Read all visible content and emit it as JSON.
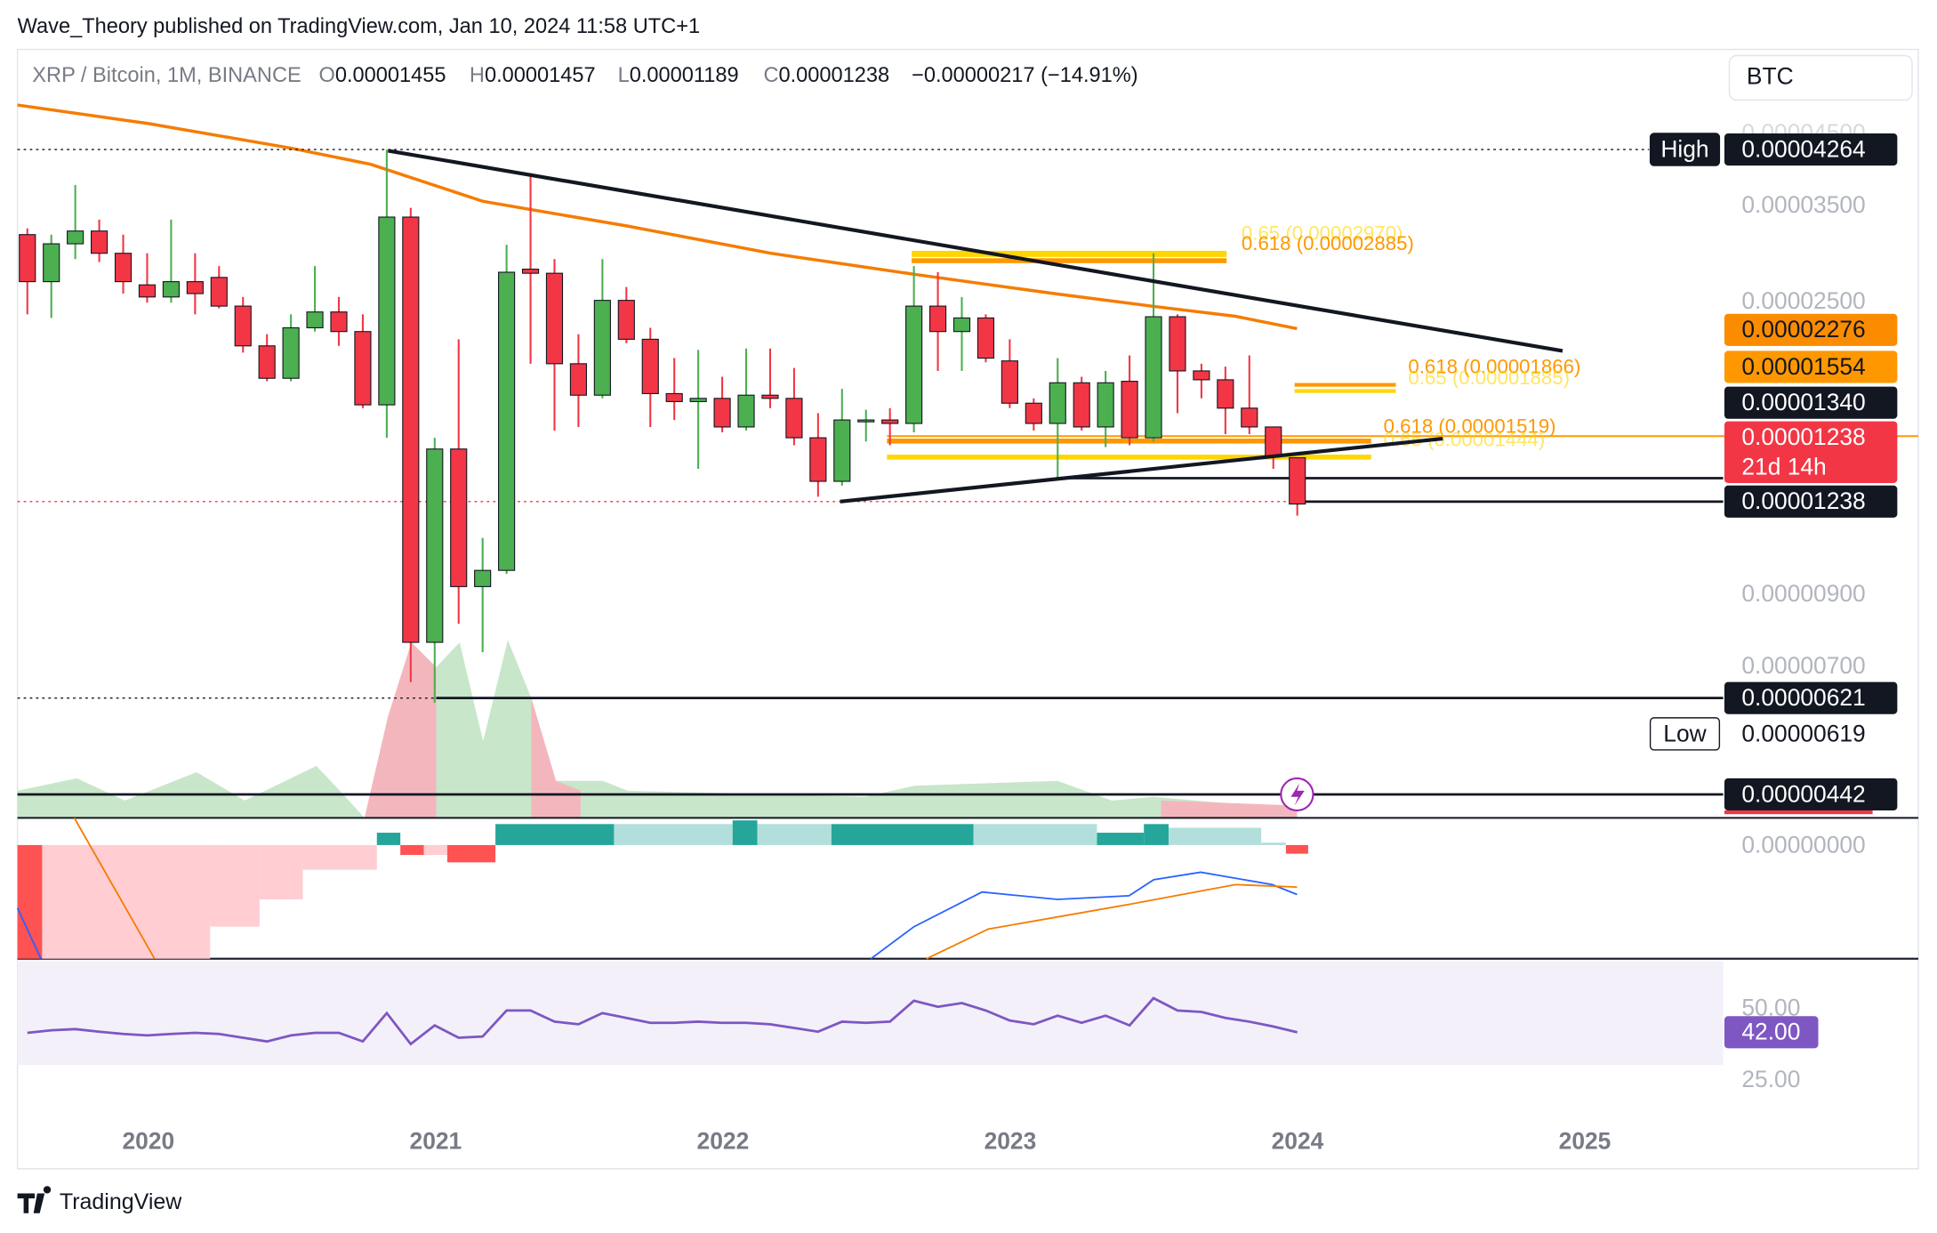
{
  "header": {
    "title": "Wave_Theory published on TradingView.com, Jan 10, 2024 11:58 UTC+1"
  },
  "legend": {
    "symbol": "XRP / Bitcoin, 1M, BINANCE",
    "o_label": "O",
    "o": "0.00001455",
    "h_label": "H",
    "h": "0.00001457",
    "l_label": "L",
    "l": "0.00001189",
    "c_label": "C",
    "c": "0.00001238",
    "change": "−0.00000217 (−14.91%)"
  },
  "currency_button": "BTC",
  "chart_data": {
    "type": "candlestick",
    "log_scale": true,
    "ylim": [
      4.14e-06,
      6.05e-05
    ],
    "yticks": [
      {
        "value": 4.5e-05,
        "label": "0.00004500"
      },
      {
        "value": 3.5e-05,
        "label": "0.00003500"
      },
      {
        "value": 2.5e-05,
        "label": "0.00002500"
      },
      {
        "value": 9e-06,
        "label": "0.00000900"
      },
      {
        "value": 7e-06,
        "label": "0.00000700"
      }
    ],
    "up_color": "#4caf50",
    "down_color": "#f23645",
    "x_labels": [
      "2020",
      "2021",
      "2022",
      "2023",
      "2024",
      "2025"
    ],
    "candles": [
      [
        3.17e-05,
        3.24e-05,
        2.4e-05,
        2.69e-05
      ],
      [
        2.69e-05,
        3.17e-05,
        2.37e-05,
        3.07e-05
      ],
      [
        3.07e-05,
        3.77e-05,
        2.91e-05,
        3.21e-05
      ],
      [
        3.21e-05,
        3.34e-05,
        2.88e-05,
        2.97e-05
      ],
      [
        2.97e-05,
        3.17e-05,
        2.58e-05,
        2.69e-05
      ],
      [
        2.66e-05,
        2.97e-05,
        2.5e-05,
        2.55e-05
      ],
      [
        2.55e-05,
        3.34e-05,
        2.5e-05,
        2.69e-05
      ],
      [
        2.69e-05,
        2.97e-05,
        2.4e-05,
        2.58e-05
      ],
      [
        2.73e-05,
        2.84e-05,
        2.45e-05,
        2.47e-05
      ],
      [
        2.47e-05,
        2.55e-05,
        2.1e-05,
        2.15e-05
      ],
      [
        2.15e-05,
        2.24e-05,
        1.9e-05,
        1.92e-05
      ],
      [
        1.92e-05,
        2.4e-05,
        1.9e-05,
        2.29e-05
      ],
      [
        2.29e-05,
        2.84e-05,
        2.26e-05,
        2.42e-05
      ],
      [
        2.42e-05,
        2.55e-05,
        2.15e-05,
        2.26e-05
      ],
      [
        2.26e-05,
        2.4e-05,
        1.73e-05,
        1.75e-05
      ],
      [
        1.75e-05,
        4.264e-05,
        1.56e-05,
        3.37e-05
      ],
      [
        3.37e-05,
        3.48e-05,
        6.65e-06,
        7.64e-06
      ],
      [
        7.64e-06,
        1.56e-05,
        6.19e-06,
        1.5e-05
      ],
      [
        1.5e-05,
        2.2e-05,
        8.15e-06,
        9.28e-06
      ],
      [
        9.28e-06,
        1.1e-05,
        7.38e-06,
        9.82e-06
      ],
      [
        9.82e-06,
        3.06e-05,
        9.7e-06,
        2.78e-05
      ],
      [
        2.81e-05,
        3.93e-05,
        2.02e-05,
        2.77e-05
      ],
      [
        2.77e-05,
        2.91e-05,
        1.6e-05,
        2.02e-05
      ],
      [
        2.02e-05,
        2.24e-05,
        1.62e-05,
        1.81e-05
      ],
      [
        1.81e-05,
        2.91e-05,
        1.79e-05,
        2.52e-05
      ],
      [
        2.52e-05,
        2.64e-05,
        2.17e-05,
        2.2e-05
      ],
      [
        2.2e-05,
        2.29e-05,
        1.62e-05,
        1.82e-05
      ],
      [
        1.82e-05,
        2.06e-05,
        1.66e-05,
        1.77e-05
      ],
      [
        1.77e-05,
        2.12e-05,
        1.4e-05,
        1.79e-05
      ],
      [
        1.79e-05,
        1.93e-05,
        1.59e-05,
        1.62e-05
      ],
      [
        1.62e-05,
        2.13e-05,
        1.6e-05,
        1.81e-05
      ],
      [
        1.81e-05,
        2.13e-05,
        1.73e-05,
        1.79e-05
      ],
      [
        1.79e-05,
        1.99e-05,
        1.52e-05,
        1.56e-05
      ],
      [
        1.56e-05,
        1.7e-05,
        1.27e-05,
        1.34e-05
      ],
      [
        1.34e-05,
        1.85e-05,
        1.32e-05,
        1.66e-05
      ],
      [
        1.65e-05,
        1.72e-05,
        1.54e-05,
        1.66e-05
      ],
      [
        1.66e-05,
        1.73e-05,
        1.52e-05,
        1.64e-05
      ],
      [
        1.64e-05,
        2.84e-05,
        1.59e-05,
        2.47e-05
      ],
      [
        2.47e-05,
        2.78e-05,
        1.97e-05,
        2.26e-05
      ],
      [
        2.26e-05,
        2.55e-05,
        1.97e-05,
        2.37e-05
      ],
      [
        2.37e-05,
        2.4e-05,
        2.03e-05,
        2.06e-05
      ],
      [
        2.04e-05,
        2.2e-05,
        1.73e-05,
        1.76e-05
      ],
      [
        1.76e-05,
        1.79e-05,
        1.6e-05,
        1.64e-05
      ],
      [
        1.64e-05,
        2.06e-05,
        1.35e-05,
        1.89e-05
      ],
      [
        1.89e-05,
        1.93e-05,
        1.6e-05,
        1.62e-05
      ],
      [
        1.62e-05,
        1.97e-05,
        1.51e-05,
        1.89e-05
      ],
      [
        1.9e-05,
        2.08e-05,
        1.52e-05,
        1.56e-05
      ],
      [
        1.56e-05,
        2.97e-05,
        1.54e-05,
        2.38e-05
      ],
      [
        2.38e-05,
        2.4e-05,
        1.7e-05,
        1.97e-05
      ],
      [
        1.97e-05,
        2.02e-05,
        1.79e-05,
        1.91e-05
      ],
      [
        1.91e-05,
        2e-05,
        1.58e-05,
        1.73e-05
      ],
      [
        1.73e-05,
        2.08e-05,
        1.58e-05,
        1.62e-05
      ],
      [
        1.62e-05,
        1.62e-05,
        1.4e-05,
        1.46e-05
      ],
      [
        1.455e-05,
        1.457e-05,
        1.189e-05,
        1.238e-05
      ]
    ]
  },
  "badges": [
    {
      "tag": "High",
      "text": "0.00004264"
    },
    {
      "text": "0.00002276"
    },
    {
      "text": "0.00001554"
    },
    {
      "text": "0.00001340"
    },
    {
      "text": "0.00001238",
      "note": "21d 14h"
    },
    {
      "text": "0.00001238"
    },
    {
      "text": "0.00000621"
    },
    {
      "tag": "Low",
      "text": "0.00000619"
    },
    {
      "text": "0.00000442"
    }
  ],
  "fib_labels": [
    "0.65 (0.00002970)",
    "0.618 (0.00002885)",
    "0.618 (0.00001866)",
    "0.65 (0.00001885)",
    "0.618 (0.00001519)",
    "0.65 (0.00001444)"
  ],
  "macd": {
    "zero_label": "0.00000000"
  },
  "rsi": {
    "ylim": [
      14.2,
      66.8
    ],
    "yticks": [
      {
        "value": 50,
        "label": "50.00"
      },
      {
        "value": 25,
        "label": "25.00"
      }
    ],
    "color": "#7e57c2",
    "last_label": "42.00",
    "values": [
      41.8,
      42.7,
      43.1,
      42.2,
      41.4,
      40.9,
      41.4,
      41.8,
      41.4,
      40.1,
      38.8,
      40.9,
      41.8,
      41.8,
      38.8,
      48.7,
      37.9,
      44.4,
      40.1,
      40.5,
      49.6,
      49.6,
      45.7,
      44.8,
      48.7,
      47.0,
      45.3,
      45.3,
      45.7,
      45.3,
      45.3,
      44.8,
      43.5,
      42.2,
      45.7,
      45.3,
      45.7,
      53.0,
      50.9,
      52.2,
      49.6,
      46.1,
      44.8,
      47.8,
      45.3,
      47.8,
      44.4,
      53.9,
      49.6,
      49.1,
      47.0,
      45.7,
      44.0,
      42.0
    ]
  },
  "footer": "TradingView"
}
